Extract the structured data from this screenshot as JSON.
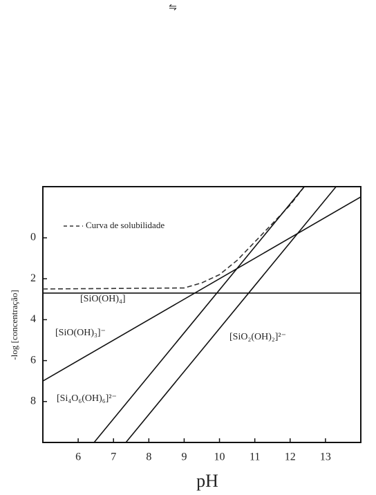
{
  "header_symbol": "⇋",
  "chart_data": {
    "type": "line",
    "x_label": "pH",
    "y_label": "-log [concentração]",
    "xlim": [
      5,
      14
    ],
    "xticks": [
      6,
      7,
      8,
      9,
      10,
      11,
      12,
      13
    ],
    "ylim": [
      -2.5,
      10
    ],
    "yticks": [
      0,
      2,
      4,
      6,
      8
    ],
    "y_inverted": true,
    "series": [
      {
        "name": "Curva de solubilidade",
        "style": "dashed",
        "legend": true,
        "color": "#333333",
        "x": [
          5,
          9,
          9.5,
          10,
          10.5,
          11,
          11.5,
          12,
          12.4
        ],
        "values": [
          2.5,
          2.45,
          2.2,
          1.8,
          1.1,
          0.2,
          -0.7,
          -1.6,
          -2.5
        ]
      },
      {
        "name": "[SiO(OH)₄]",
        "style": "solid",
        "color": "#111111",
        "x": [
          5,
          14
        ],
        "values": [
          2.7,
          2.7
        ]
      },
      {
        "name": "[SiO(OH)₃]⁻",
        "style": "solid",
        "color": "#111111",
        "x": [
          5,
          14
        ],
        "values": [
          7,
          -2
        ]
      },
      {
        "name": "[SiO₂(OH)₂]²⁻",
        "style": "solid",
        "color": "#111111",
        "x": [
          7.35,
          13.3
        ],
        "values": [
          10,
          -2.5
        ]
      },
      {
        "name": "[Si₄O₆(OH)₆]²⁻",
        "style": "solid",
        "color": "#111111",
        "x": [
          6.45,
          12.4
        ],
        "values": [
          10,
          -2.5
        ]
      }
    ]
  }
}
